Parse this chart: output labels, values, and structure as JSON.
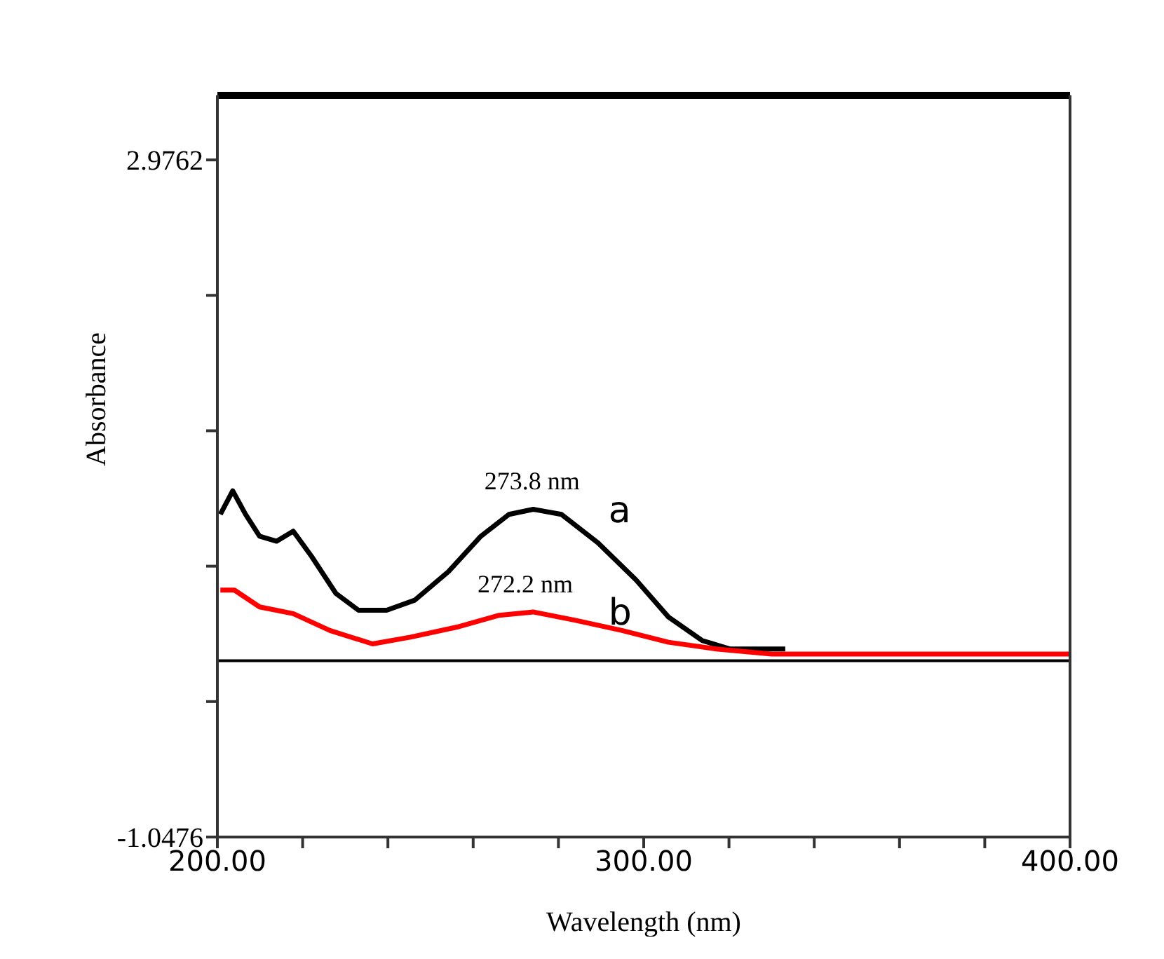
{
  "chart_data": {
    "type": "line",
    "xlabel": "Wavelength (nm)",
    "ylabel": "Absorbance",
    "xlim": [
      200,
      400
    ],
    "xticks": [
      {
        "value": 200,
        "label": "200.00"
      },
      {
        "value": 220,
        "label": null
      },
      {
        "value": 240,
        "label": null
      },
      {
        "value": 260,
        "label": null
      },
      {
        "value": 280,
        "label": null
      },
      {
        "value": 300,
        "label": "300.00"
      },
      {
        "value": 320,
        "label": null
      },
      {
        "value": 340,
        "label": null
      },
      {
        "value": 360,
        "label": null
      },
      {
        "value": 380,
        "label": null
      },
      {
        "value": 400,
        "label": "400.00"
      }
    ],
    "ylim": [
      -1.0476,
      3.36
    ],
    "yticks": [
      {
        "value": -1.0476,
        "label": "-1.0476"
      },
      {
        "value": -0.2428,
        "label": null
      },
      {
        "value": 0.562,
        "label": null
      },
      {
        "value": 1.3667,
        "label": null
      },
      {
        "value": 2.1714,
        "label": null
      },
      {
        "value": 2.9762,
        "label": "2.9762"
      }
    ],
    "marker": "none",
    "line_style": "solid",
    "ref_lines": [
      {
        "axis": "y",
        "value": 0,
        "color": "#000000"
      }
    ],
    "series": [
      {
        "name": "a",
        "color": "#000000",
        "x": [
          200.7,
          203.6,
          206.6,
          209.9,
          213.9,
          217.8,
          222.1,
          227.8,
          233.1,
          239.7,
          246.3,
          254.2,
          261.8,
          268.4,
          274.1,
          280.7,
          289.3,
          298.2,
          305.8,
          313.7,
          320.3,
          333.2
        ],
        "values": [
          0.87,
          1.01,
          0.87,
          0.74,
          0.71,
          0.77,
          0.62,
          0.4,
          0.3,
          0.3,
          0.36,
          0.53,
          0.74,
          0.87,
          0.9,
          0.87,
          0.7,
          0.48,
          0.26,
          0.12,
          0.07,
          0.07
        ]
      },
      {
        "name": "b",
        "color": "#ff0000",
        "x": [
          200.7,
          204,
          209.9,
          217.8,
          226.4,
          236.4,
          245.3,
          256.2,
          266.1,
          274.1,
          284,
          294.9,
          305.8,
          317,
          330,
          400
        ],
        "values": [
          0.42,
          0.42,
          0.32,
          0.28,
          0.18,
          0.1,
          0.14,
          0.2,
          0.27,
          0.29,
          0.24,
          0.18,
          0.11,
          0.07,
          0.04,
          0.04
        ]
      }
    ],
    "annotations": [
      {
        "text": "273.8 nm",
        "x": 273.8,
        "y": 0.9
      },
      {
        "text": "272.2 nm",
        "x": 272.2,
        "y": 0.29
      }
    ]
  }
}
